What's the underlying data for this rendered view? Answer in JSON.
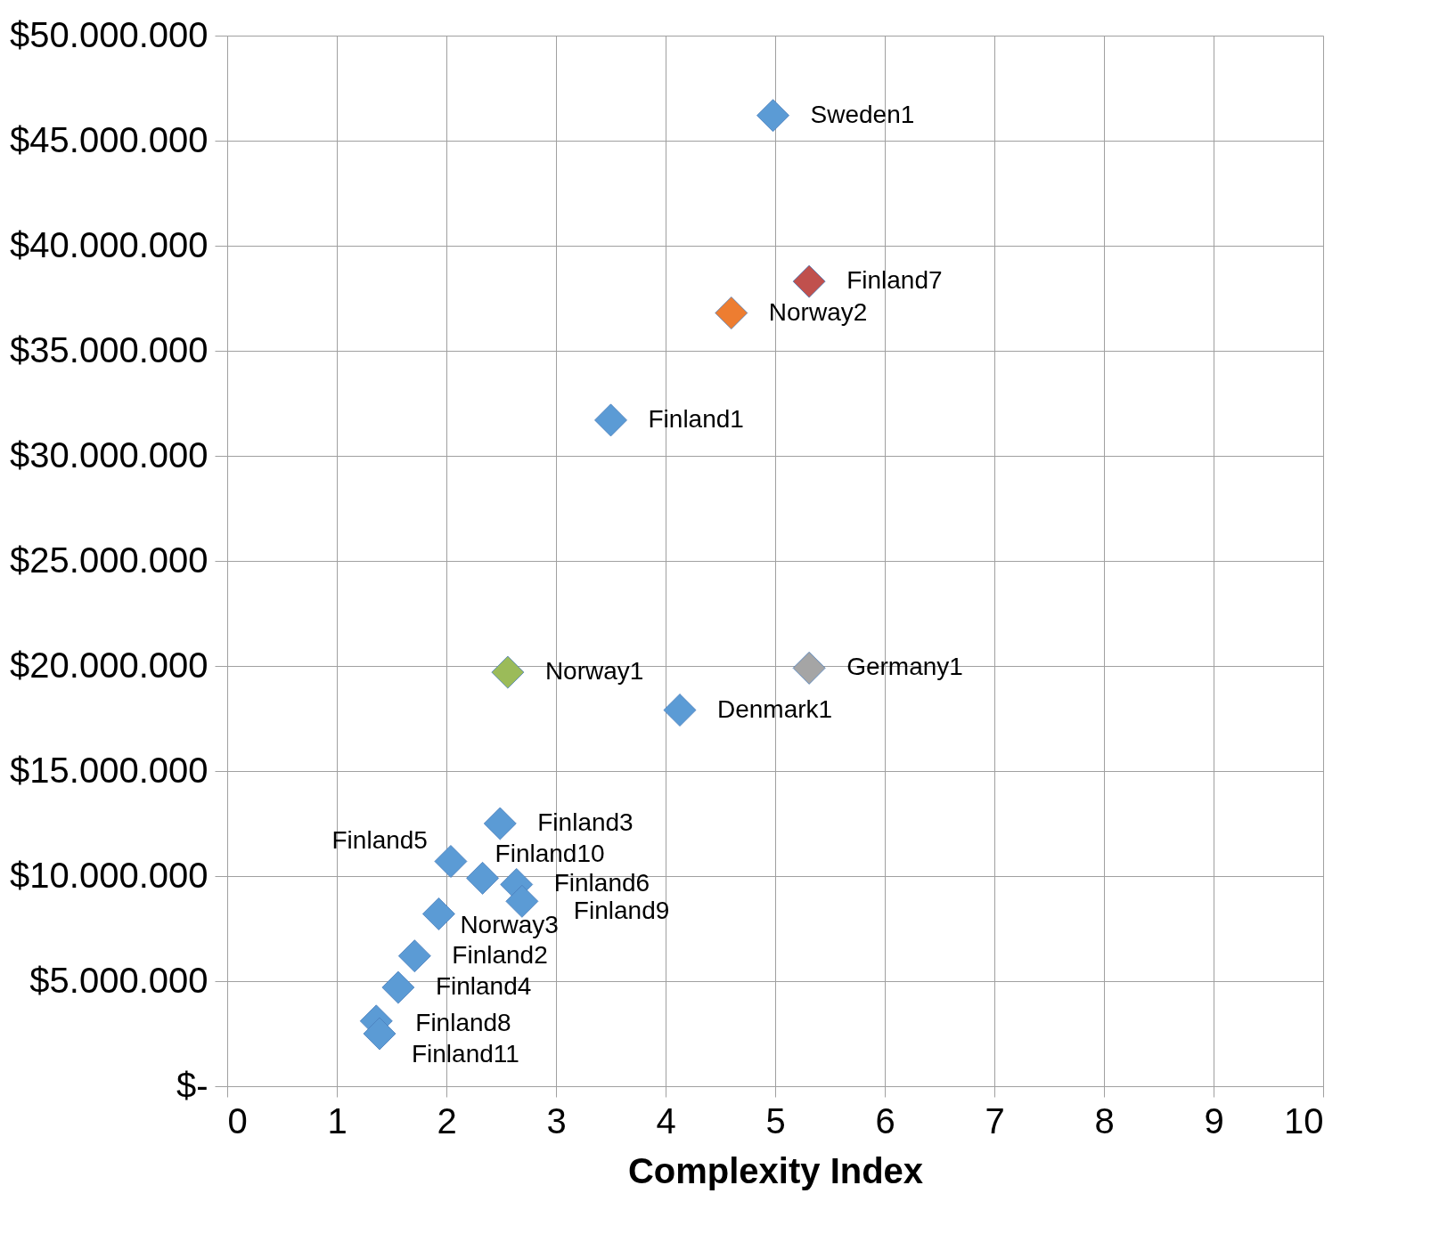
{
  "chart_data": {
    "type": "scatter",
    "xlabel": "Complexity Index",
    "x": [
      4.98,
      5.31,
      4.6,
      3.5,
      2.56,
      5.31,
      4.13,
      2.49,
      2.04,
      2.33,
      2.64,
      2.69,
      1.93,
      1.71,
      1.56,
      1.36,
      1.39
    ],
    "values": [
      46200000,
      38300000,
      36800000,
      31700000,
      19700000,
      19900000,
      17900000,
      12500000,
      10700000,
      9900000,
      9600000,
      8800000,
      8200000,
      6200000,
      4700000,
      3100000,
      2500000
    ],
    "colors": [
      "#5b9bd5",
      "#c0504d",
      "#ed7d31",
      "#5b9bd5",
      "#9bbb59",
      "#a5a5a5",
      "#5b9bd5",
      "#5b9bd5",
      "#5b9bd5",
      "#5b9bd5",
      "#5b9bd5",
      "#5b9bd5",
      "#5b9bd5",
      "#5b9bd5",
      "#5b9bd5",
      "#5b9bd5",
      "#5b9bd5"
    ],
    "annotations": [
      {
        "text": "Sweden1",
        "x": 4.98,
        "y": 46200000
      },
      {
        "text": "Finland7",
        "x": 5.31,
        "y": 38300000
      },
      {
        "text": "Norway2",
        "x": 4.6,
        "y": 36800000
      },
      {
        "text": "Finland1",
        "x": 3.5,
        "y": 31700000
      },
      {
        "text": "Norway1",
        "x": 2.56,
        "y": 19700000
      },
      {
        "text": "Germany1",
        "x": 5.31,
        "y": 19900000
      },
      {
        "text": "Denmark1",
        "x": 4.13,
        "y": 17900000
      },
      {
        "text": "Finland3",
        "x": 2.49,
        "y": 12500000
      },
      {
        "text": "Finland5",
        "x": 2.04,
        "y": 10700000
      },
      {
        "text": "Finland10",
        "x": 2.33,
        "y": 9900000
      },
      {
        "text": "Finland6",
        "x": 2.64,
        "y": 9600000
      },
      {
        "text": "Finland9",
        "x": 2.69,
        "y": 8800000
      },
      {
        "text": "Norway3",
        "x": 1.93,
        "y": 8200000
      },
      {
        "text": "Finland2",
        "x": 1.71,
        "y": 6200000
      },
      {
        "text": "Finland4",
        "x": 1.56,
        "y": 4700000
      },
      {
        "text": "Finland8",
        "x": 1.36,
        "y": 3100000
      },
      {
        "text": "Finland11",
        "x": 1.39,
        "y": 2500000
      }
    ],
    "xlim": [
      0,
      10
    ],
    "xticks": [
      0,
      1,
      2,
      3,
      4,
      5,
      6,
      7,
      8,
      9,
      10
    ],
    "ylim": [
      0,
      50000000
    ],
    "yticks": [
      {
        "value": 0,
        "label": "$-"
      },
      {
        "value": 5000000,
        "label": "$5.000.000"
      },
      {
        "value": 10000000,
        "label": "$10.000.000"
      },
      {
        "value": 15000000,
        "label": "$15.000.000"
      },
      {
        "value": 20000000,
        "label": "$20.000.000"
      },
      {
        "value": 25000000,
        "label": "$25.000.000"
      },
      {
        "value": 30000000,
        "label": "$30.000.000"
      },
      {
        "value": 35000000,
        "label": "$35.000.000"
      },
      {
        "value": 40000000,
        "label": "$40.000.000"
      },
      {
        "value": 45000000,
        "label": "$45.000.000"
      },
      {
        "value": 50000000,
        "label": "$50.000.000"
      }
    ],
    "grid": true,
    "marker": "diamond"
  }
}
